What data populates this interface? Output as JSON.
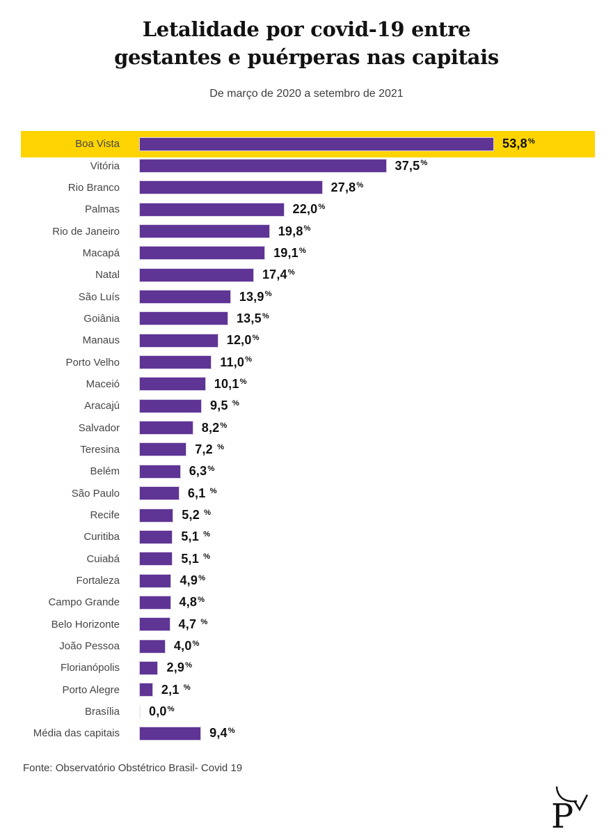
{
  "header": {
    "title_line1": "Letalidade por covid-19 entre",
    "title_line2": "gestantes e puérperas nas capitais",
    "subtitle": "De março de 2020 a setembro de 2021"
  },
  "footer": {
    "source": "Fonte: Observatório Obstétrico Brasil- Covid 19",
    "logo_icon": "p-checkmark-logo"
  },
  "chart_data": {
    "type": "bar",
    "orientation": "horizontal",
    "title": "Letalidade por covid-19 entre gestantes e puérperas nas capitais",
    "subtitle": "De março de 2020 a setembro de 2021",
    "unit": "%",
    "decimal_separator": ",",
    "xlim": [
      0,
      55
    ],
    "grid": false,
    "legend": false,
    "categories": [
      "Boa Vista",
      "Vitória",
      "Rio Branco",
      "Palmas",
      "Rio de Janeiro",
      "Macapá",
      "Natal",
      "São Luís",
      "Goiânia",
      "Manaus",
      "Porto Velho",
      "Maceió",
      "Aracajú",
      "Salvador",
      "Teresina",
      "Belém",
      "São Paulo",
      "Recife",
      "Curitiba",
      "Cuiabá",
      "Fortaleza",
      "Campo Grande",
      "Belo Horizonte",
      "João Pessoa",
      "Florianópolis",
      "Porto Alegre",
      "Brasília",
      "Média das capitais"
    ],
    "values": [
      53.8,
      37.5,
      27.8,
      22.0,
      19.8,
      19.1,
      17.4,
      13.9,
      13.5,
      12.0,
      11.0,
      10.1,
      9.5,
      8.2,
      7.2,
      6.3,
      6.1,
      5.2,
      5.1,
      5.1,
      4.9,
      4.8,
      4.7,
      4.0,
      2.9,
      2.1,
      0.0,
      9.4
    ],
    "value_labels": [
      "53,8%",
      "37,5%",
      "27,8%",
      "22,0%",
      "19,8%",
      "19,1%",
      "17,4%",
      "13,9%",
      "13,5%",
      "12,0%",
      "11,0%",
      "10,1%",
      "9,5 %",
      "8,2%",
      "7,2 %",
      "6,3%",
      "6,1 %",
      "5,2 %",
      "5,1 %",
      "5,1 %",
      "4,9%",
      "4,8%",
      "4,7 %",
      "4,0%",
      "2,9%",
      "2,1 %",
      "0,0%",
      "9,4%"
    ],
    "highlight_category": "Boa Vista",
    "colors": {
      "bar": "#5e3494",
      "bar_border": "#d9d0e6",
      "highlight_band": "#ffd400",
      "value_text": "#111111",
      "category_text": "#454545"
    }
  }
}
